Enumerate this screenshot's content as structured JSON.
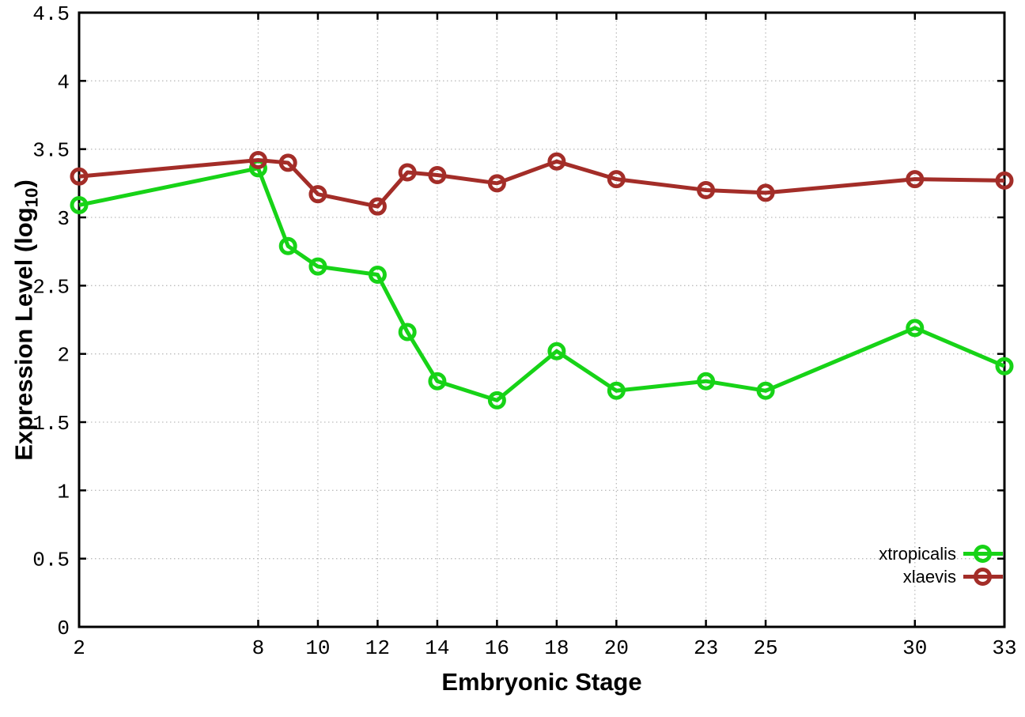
{
  "chart_data": {
    "type": "line",
    "title": "",
    "xlabel": "Embryonic Stage",
    "ylabel": "Expression Level (log10)",
    "ylabel_parts": {
      "pre": "Expression Level (log",
      "sub": "10",
      "post": ")"
    },
    "xlim": [
      2,
      33
    ],
    "ylim": [
      0,
      4.5
    ],
    "xticks": [
      "2",
      "8",
      "10",
      "12",
      "14",
      "16",
      "18",
      "20",
      "23",
      "25",
      "30",
      "33"
    ],
    "yticks": [
      "0",
      "0.5",
      "1",
      "1.5",
      "2",
      "2.5",
      "3",
      "3.5",
      "4",
      "4.5"
    ],
    "grid": "dotted",
    "legend_position": "inside-bottom-right",
    "marker": "open-circle",
    "x": [
      2,
      8,
      9,
      10,
      12,
      13,
      14,
      16,
      18,
      20,
      23,
      25,
      30,
      33
    ],
    "series": [
      {
        "name": "xtropicalis",
        "color": "#17d317",
        "values": [
          3.09,
          3.36,
          2.79,
          2.64,
          2.58,
          2.16,
          1.8,
          1.66,
          2.02,
          1.73,
          1.8,
          1.73,
          2.19,
          1.91
        ]
      },
      {
        "name": "xlaevis",
        "color": "#a32d28",
        "values": [
          3.3,
          3.42,
          3.4,
          3.17,
          3.08,
          3.33,
          3.31,
          3.25,
          3.41,
          3.28,
          3.2,
          3.18,
          3.28,
          3.27
        ]
      }
    ]
  },
  "colors": {
    "background": "#ffffff",
    "axis": "#000000",
    "grid": "#bcbcbc",
    "text": "#000000"
  }
}
